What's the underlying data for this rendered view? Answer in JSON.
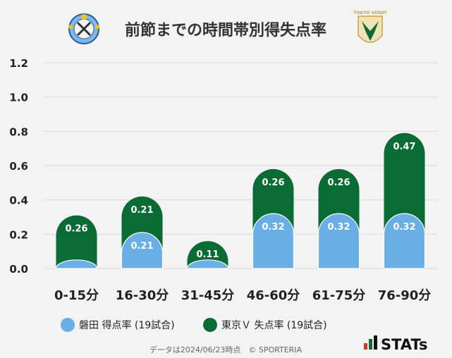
{
  "chart_data": {
    "type": "bar",
    "title": "前節までの時間帯別得失点率",
    "categories": [
      "0-15分",
      "16-30分",
      "31-45分",
      "46-60分",
      "61-75分",
      "76-90分"
    ],
    "series": [
      {
        "name": "磐田 得点率 (19試合)",
        "values": [
          0.05,
          0.21,
          0.05,
          0.32,
          0.32,
          0.32
        ],
        "labels": [
          "",
          "0.21",
          "",
          "0.32",
          "0.32",
          "0.32"
        ],
        "color": "#6aaee6"
      },
      {
        "name": "東京Ｖ 失点率 (19試合)",
        "values": [
          0.26,
          0.21,
          0.11,
          0.26,
          0.26,
          0.47
        ],
        "labels": [
          "0.26",
          "0.21",
          "0.11",
          "0.26",
          "0.26",
          "0.47"
        ],
        "color": "#0a6b35"
      }
    ],
    "yticks": [
      "0.0",
      "0.2",
      "0.4",
      "0.6",
      "0.8",
      "1.0",
      "1.2"
    ],
    "ylim": [
      0,
      1.2
    ],
    "grid": true,
    "legend_position": "bottom"
  },
  "footer": {
    "note": "データは2024/06/23時点　© SPORTERIA",
    "brand": "STATs"
  },
  "logos": {
    "left_team": "Jubilo Iwata crest",
    "right_team": "TOKYO VERDY"
  }
}
